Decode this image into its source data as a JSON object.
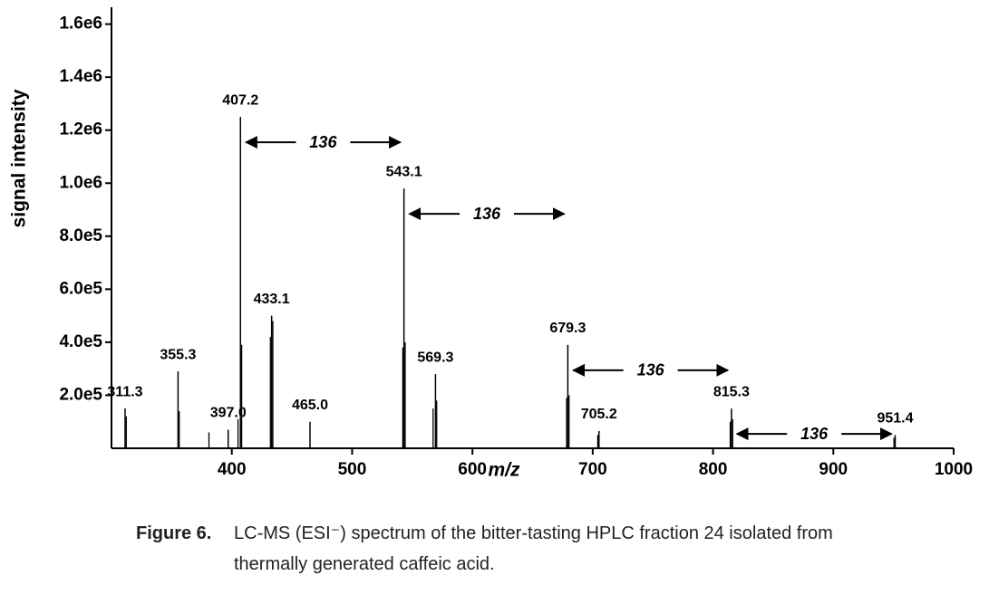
{
  "chart_data": {
    "type": "spectrum",
    "xlabel": "m/z",
    "ylabel": "signal intensity",
    "xlim": [
      300,
      1000
    ],
    "xticks": [
      400,
      500,
      600,
      700,
      800,
      900,
      1000
    ],
    "ylim": [
      0,
      1650000
    ],
    "yticks": [
      {
        "value": 200000,
        "label": "2.0e5"
      },
      {
        "value": 400000,
        "label": "4.0e5"
      },
      {
        "value": 600000,
        "label": "6.0e5"
      },
      {
        "value": 800000,
        "label": "8.0e5"
      },
      {
        "value": 1000000,
        "label": "1.0e6"
      },
      {
        "value": 1200000,
        "label": "1.2e6"
      },
      {
        "value": 1400000,
        "label": "1.4e6"
      },
      {
        "value": 1600000,
        "label": "1.6e6"
      }
    ],
    "color": "#000000",
    "labeled_peaks": {
      "x": [
        311.3,
        355.3,
        397.0,
        407.2,
        433.1,
        465.0,
        543.1,
        569.3,
        679.3,
        705.2,
        815.3,
        951.4
      ],
      "x_labels": [
        "311.3",
        "355.3",
        "397.0",
        "407.2",
        "433.1",
        "465.0",
        "543.1",
        "569.3",
        "679.3",
        "705.2",
        "815.3",
        "951.4"
      ],
      "values": [
        150000,
        290000,
        70000,
        1250000,
        500000,
        100000,
        980000,
        280000,
        390000,
        65000,
        150000,
        50000
      ]
    },
    "other_peaks": {
      "x": [
        312.3,
        356.3,
        381.0,
        405.2,
        408.2,
        432.1,
        434.1,
        542.1,
        544.1,
        567.3,
        570.3,
        678.3,
        680.3,
        704.2,
        814.3,
        816.3,
        950.4
      ],
      "values": [
        120000,
        140000,
        60000,
        110000,
        390000,
        420000,
        480000,
        380000,
        400000,
        150000,
        180000,
        190000,
        200000,
        50000,
        100000,
        110000,
        40000
      ]
    },
    "annotations": [
      "136",
      "136",
      "136",
      "136"
    ]
  },
  "caption": {
    "label": "Figure 6.",
    "text": "LC-MS (ESI⁻) spectrum of the bitter-tasting HPLC fraction 24 isolated from thermally generated caffeic acid."
  }
}
